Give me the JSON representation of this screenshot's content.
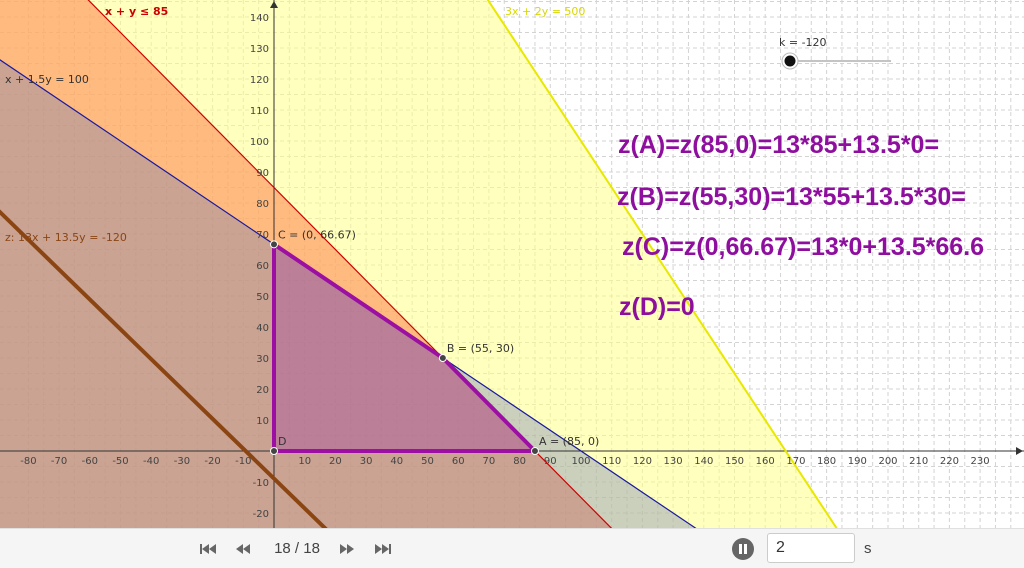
{
  "chart_data": {
    "type": "line",
    "x_ticks": [
      -80,
      -70,
      -60,
      -50,
      -40,
      -30,
      -20,
      -10,
      10,
      20,
      30,
      40,
      50,
      60,
      70,
      80,
      90,
      100,
      110,
      120,
      130,
      140,
      150,
      160,
      170,
      180,
      190,
      200,
      210,
      220,
      230
    ],
    "y_ticks": [
      -20,
      -10,
      10,
      20,
      30,
      40,
      50,
      60,
      70,
      80,
      90,
      100,
      110,
      120,
      130,
      140
    ],
    "xlim": [
      -88,
      240
    ],
    "ylim": [
      -24,
      145
    ],
    "grid": true,
    "lines": [
      {
        "label": "x + y ≤ 85",
        "a": 1,
        "b": 1,
        "c": 85,
        "color": "#cc0000",
        "fill": "#ff8c55"
      },
      {
        "label": "x + 1.5y = 100",
        "a": 1,
        "b": 1.5,
        "c": 100,
        "color": "#1a1aa0",
        "fill": "#6677bb"
      },
      {
        "label": "3x + 2y = 500",
        "a": 3,
        "b": 2,
        "c": 500,
        "color": "#e8e800",
        "fill": "#ffff88"
      },
      {
        "label": "z: 13x + 13.5y = -120",
        "a": 13,
        "b": 13.5,
        "c": -120,
        "color": "#8b4513",
        "fill": null
      }
    ],
    "feasible_polygon": [
      [
        0,
        0
      ],
      [
        85,
        0
      ],
      [
        55,
        30
      ],
      [
        0,
        66.67
      ]
    ],
    "points": [
      {
        "label": "A = (85, 0)",
        "x": 85,
        "y": 0
      },
      {
        "label": "B = (55, 30)",
        "x": 55,
        "y": 30
      },
      {
        "label": "C = (0, 66.67)",
        "x": 0,
        "y": 66.67
      },
      {
        "label": "D",
        "x": 0,
        "y": 0
      }
    ],
    "slider": {
      "label": "k = -120",
      "value": -120
    },
    "texts": [
      "z(A)=z(85,0)=13*85+13.5*0=",
      "z(B)=z(55,30)=13*55+13.5*30=",
      "z(C)=z(0,66.67)=13*0+13.5*66.6",
      "z(D)=0"
    ]
  },
  "toolbar": {
    "first_icon": "skip-first-icon",
    "prev_icon": "rewind-icon",
    "slide_counter": "18 / 18",
    "next_icon": "fast-forward-icon",
    "last_icon": "skip-last-icon",
    "pause_icon": "pause-icon",
    "speed_value": "2",
    "speed_unit": "s"
  }
}
